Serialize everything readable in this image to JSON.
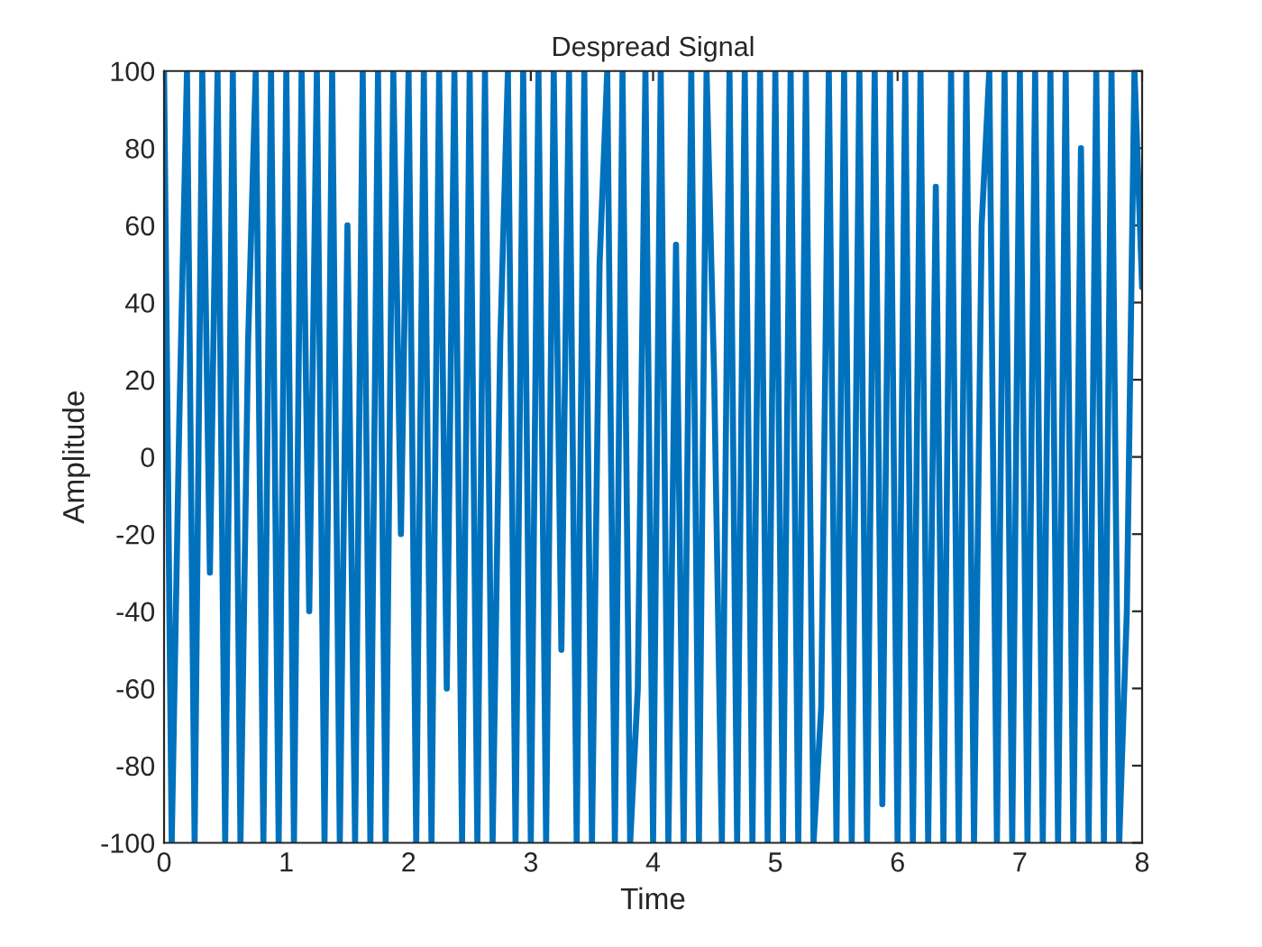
{
  "chart_data": {
    "type": "line",
    "title": "Despread Signal",
    "xlabel": "Time",
    "ylabel": "Amplitude",
    "xlim": [
      0,
      8
    ],
    "xticks": [
      0,
      1,
      2,
      3,
      4,
      5,
      6,
      7,
      8
    ],
    "ylim": [
      -100,
      100
    ],
    "yticks": [
      -100,
      -80,
      -60,
      -40,
      -20,
      0,
      20,
      40,
      60,
      80,
      100
    ],
    "grid": false,
    "legend": false,
    "x": [
      0,
      0.0625,
      0.125,
      0.1875,
      0.25,
      0.3125,
      0.375,
      0.4375,
      0.5,
      0.5625,
      0.625,
      0.6875,
      0.75,
      0.8125,
      0.875,
      0.9375,
      1,
      1.0625,
      1.125,
      1.1875,
      1.25,
      1.3125,
      1.375,
      1.4375,
      1.5,
      1.5625,
      1.625,
      1.6875,
      1.75,
      1.8125,
      1.875,
      1.9375,
      2,
      2.0625,
      2.125,
      2.1875,
      2.25,
      2.3125,
      2.375,
      2.4375,
      2.5,
      2.5625,
      2.625,
      2.6875,
      2.75,
      2.8125,
      2.875,
      2.9375,
      3,
      3.0625,
      3.125,
      3.1875,
      3.25,
      3.3125,
      3.375,
      3.4375,
      3.5,
      3.5625,
      3.625,
      3.6875,
      3.75,
      3.8125,
      3.875,
      3.9375,
      4,
      4.0625,
      4.125,
      4.1875,
      4.25,
      4.3125,
      4.375,
      4.4375,
      4.5,
      4.5625,
      4.625,
      4.6875,
      4.75,
      4.8125,
      4.875,
      4.9375,
      5,
      5.0625,
      5.125,
      5.1875,
      5.25,
      5.3125,
      5.375,
      5.4375,
      5.5,
      5.5625,
      5.625,
      5.6875,
      5.75,
      5.8125,
      5.875,
      5.9375,
      6,
      6.0625,
      6.125,
      6.1875,
      6.25,
      6.3125,
      6.375,
      6.4375,
      6.5,
      6.5625,
      6.625,
      6.6875,
      6.75,
      6.8125,
      6.875,
      6.9375,
      7,
      7.0625,
      7.125,
      7.1875,
      7.25,
      7.3125,
      7.375,
      7.4375,
      7.5,
      7.5625,
      7.625,
      7.6875,
      7.75,
      7.8125,
      7.875,
      7.9375,
      8
    ],
    "series": [
      {
        "color": "#0072bd",
        "values": [
          100,
          -100,
          10,
          100,
          -100,
          100,
          -30,
          100,
          -100,
          100,
          -100,
          30,
          100,
          -100,
          100,
          -100,
          100,
          -100,
          100,
          -40,
          100,
          -100,
          100,
          -100,
          60,
          -100,
          100,
          -100,
          100,
          -100,
          100,
          -20,
          100,
          -100,
          100,
          -100,
          100,
          -60,
          100,
          -100,
          100,
          -100,
          100,
          -100,
          30,
          100,
          -100,
          100,
          -100,
          100,
          -100,
          100,
          -50,
          100,
          -100,
          100,
          -100,
          50,
          100,
          -100,
          100,
          -100,
          -60,
          100,
          -100,
          100,
          -100,
          55,
          -100,
          100,
          -100,
          100,
          20,
          -100,
          100,
          -100,
          100,
          -100,
          100,
          -100,
          100,
          -100,
          100,
          -100,
          100,
          -100,
          -65,
          100,
          -100,
          100,
          -100,
          100,
          -100,
          100,
          -90,
          100,
          -100,
          100,
          -100,
          100,
          -100,
          70,
          -100,
          100,
          -100,
          100,
          -100,
          60,
          100,
          -100,
          100,
          -100,
          100,
          -100,
          100,
          -100,
          100,
          -100,
          100,
          -100,
          80,
          -100,
          100,
          -100,
          100,
          -100,
          -40,
          100,
          44
        ]
      }
    ]
  }
}
